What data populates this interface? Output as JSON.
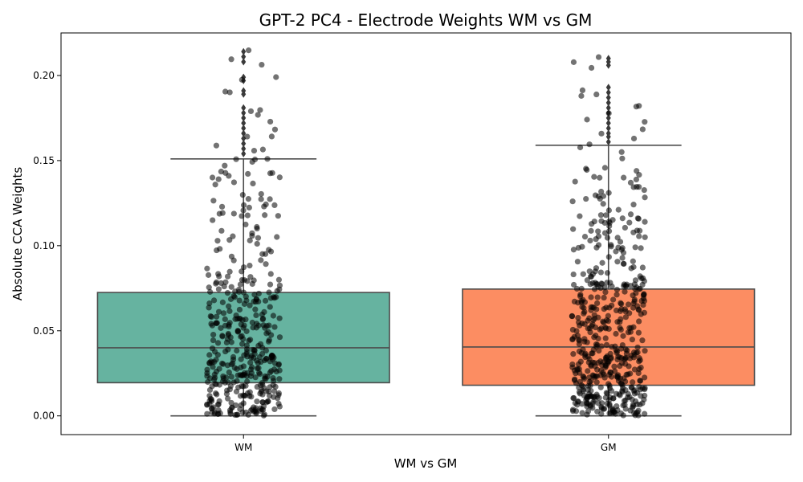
{
  "chart_data": {
    "type": "box",
    "title": "GPT-2 PC4 - Electrode Weights WM vs GM",
    "xlabel": "WM vs GM",
    "ylabel": "Absolute CCA Weights",
    "categories": [
      "WM",
      "GM"
    ],
    "ylim": [
      -0.011,
      0.225
    ],
    "yticks": [
      0.0,
      0.05,
      0.1,
      0.15,
      0.2
    ],
    "ytick_labels": [
      "0.00",
      "0.05",
      "0.10",
      "0.15",
      "0.20"
    ],
    "grid": false,
    "legend": "none",
    "boxes": [
      {
        "category": "WM",
        "color": "#66b3a0",
        "whisker_low": 0.0,
        "q1": 0.0195,
        "median": 0.04,
        "q3": 0.0725,
        "whisker_high": 0.151,
        "outliers": [
          0.154,
          0.157,
          0.16,
          0.163,
          0.166,
          0.169,
          0.172,
          0.175,
          0.178,
          0.181,
          0.189,
          0.191,
          0.197,
          0.199,
          0.208,
          0.211,
          0.214
        ],
        "n_points": 420
      },
      {
        "category": "GM",
        "color": "#fc8d62",
        "whisker_low": 0.0,
        "q1": 0.018,
        "median": 0.0405,
        "q3": 0.0745,
        "whisker_high": 0.159,
        "outliers": [
          0.161,
          0.164,
          0.166,
          0.169,
          0.172,
          0.175,
          0.178,
          0.181,
          0.184,
          0.187,
          0.19,
          0.193,
          0.206,
          0.208,
          0.21
        ],
        "n_points": 520
      }
    ],
    "point_color": "#000000",
    "outlier_color": "#3a3a3a"
  }
}
